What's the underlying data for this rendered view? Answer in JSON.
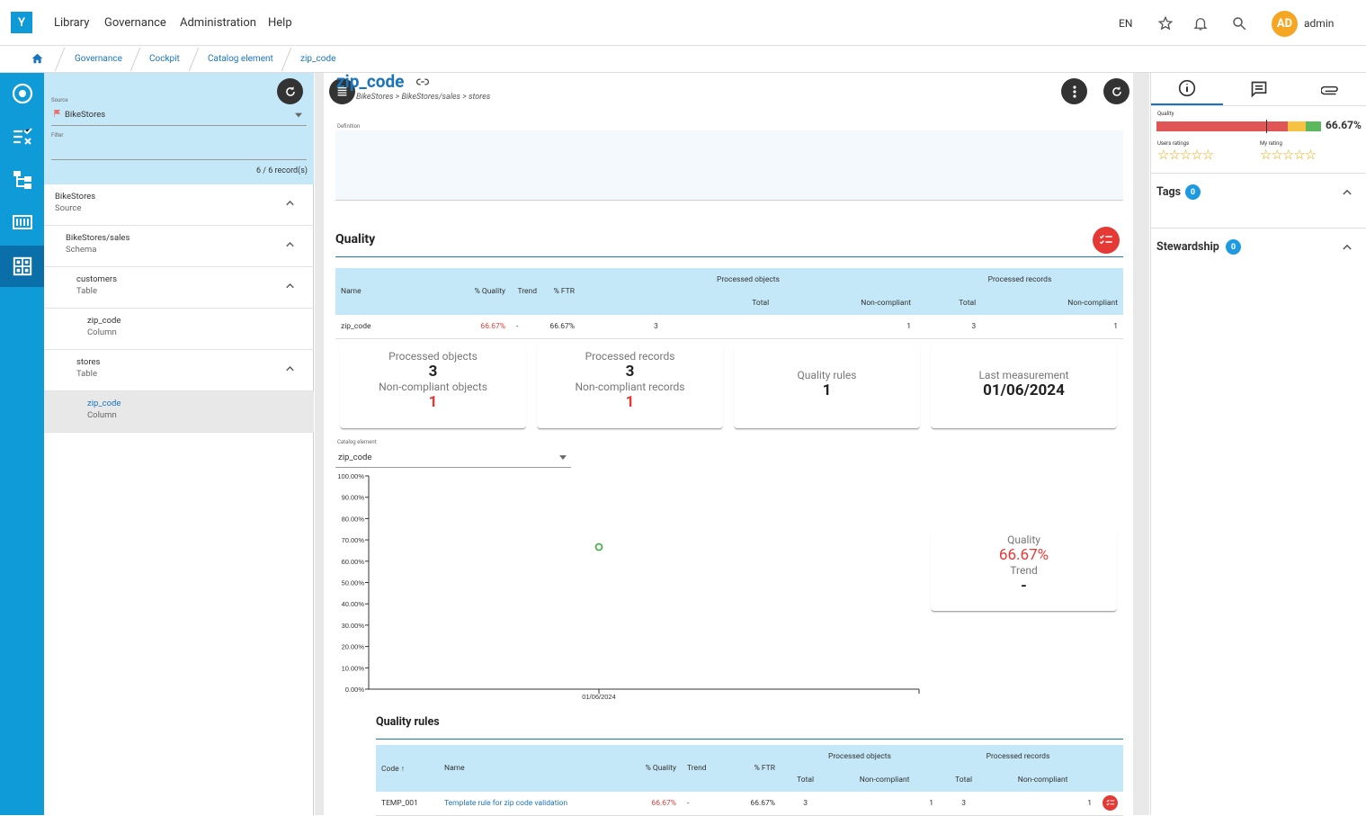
{
  "app": {
    "logo": "Y",
    "menu": [
      "Library",
      "Governance",
      "Administration",
      "Help"
    ],
    "lang": "EN",
    "user_initials": "AD",
    "user_name": "admin"
  },
  "breadcrumb": [
    "Governance",
    "Cockpit",
    "Catalog element",
    "zip_code"
  ],
  "tree": {
    "source_label": "Source",
    "source_value": "BikeStores",
    "filter_label": "Filter",
    "record_count": "6 / 6 record(s)",
    "items": [
      {
        "name": "BikeStores",
        "type": "Source"
      },
      {
        "name": "BikeStores/sales",
        "type": "Schema"
      },
      {
        "name": "customers",
        "type": "Table"
      },
      {
        "name": "zip_code",
        "type": "Column"
      },
      {
        "name": "stores",
        "type": "Table"
      },
      {
        "name": "zip_code",
        "type": "Column"
      }
    ]
  },
  "element": {
    "title": "zip_code",
    "path": "BikeStores > BikeStores/sales > stores",
    "definition_label": "Definition"
  },
  "quality": {
    "section_title": "Quality",
    "headers": {
      "name": "Name",
      "pct_quality": "% Quality",
      "trend": "Trend",
      "ftr": "% FTR",
      "processed_objects": "Processed objects",
      "processed_records": "Processed records",
      "total": "Total",
      "non_compliant": "Non-compliant"
    },
    "row": {
      "name": "zip_code",
      "pct_quality": "66.67%",
      "trend": "-",
      "ftr": "66.67%",
      "obj_total": "3",
      "obj_nc": "1",
      "rec_total": "3",
      "rec_nc": "1"
    },
    "cards": {
      "processed_objects_label": "Processed objects",
      "processed_objects": "3",
      "nc_objects_label": "Non-compliant objects",
      "nc_objects": "1",
      "processed_records_label": "Processed records",
      "processed_records": "3",
      "nc_records_label": "Non-compliant records",
      "nc_records": "1",
      "rules_label": "Quality rules",
      "rules": "1",
      "last_label": "Last measurement",
      "last": "01/06/2024"
    },
    "catalog_label": "Catalog element",
    "catalog_value": "zip_code",
    "summary": {
      "quality_label": "Quality",
      "quality": "66.67%",
      "trend_label": "Trend",
      "trend": "-"
    }
  },
  "chart_data": {
    "type": "scatter",
    "x": [
      "01/06/2024"
    ],
    "y": [
      66.67
    ],
    "yticks": [
      "100.00%",
      "90.00%",
      "80.00%",
      "70.00%",
      "60.00%",
      "50.00%",
      "40.00%",
      "30.00%",
      "20.00%",
      "10.00%",
      "0.00%"
    ],
    "ylim": [
      0,
      100
    ],
    "color": "#4caf50"
  },
  "rules": {
    "title": "Quality rules",
    "headers": {
      "code": "Code",
      "name": "Name",
      "pct_quality": "% Quality",
      "trend": "Trend",
      "ftr": "% FTR",
      "processed_objects": "Processed objects",
      "processed_records": "Processed records",
      "total": "Total",
      "non_compliant": "Non-compliant"
    },
    "row": {
      "code": "TEMP_001",
      "name": "Template rule for zip code validation",
      "pct_quality": "66.67%",
      "trend": "-",
      "ftr": "66.67%",
      "obj_total": "3",
      "obj_nc": "1",
      "rec_total": "3",
      "rec_nc": "1"
    }
  },
  "side": {
    "quality_label": "Quality",
    "quality_value": "66.67%",
    "quality_bar_fraction": 0.6667,
    "users_ratings_label": "Users ratings",
    "my_rating_label": "My rating",
    "tags_label": "Tags",
    "tags_count": "0",
    "stewardship_label": "Stewardship",
    "stewardship_count": "0"
  }
}
